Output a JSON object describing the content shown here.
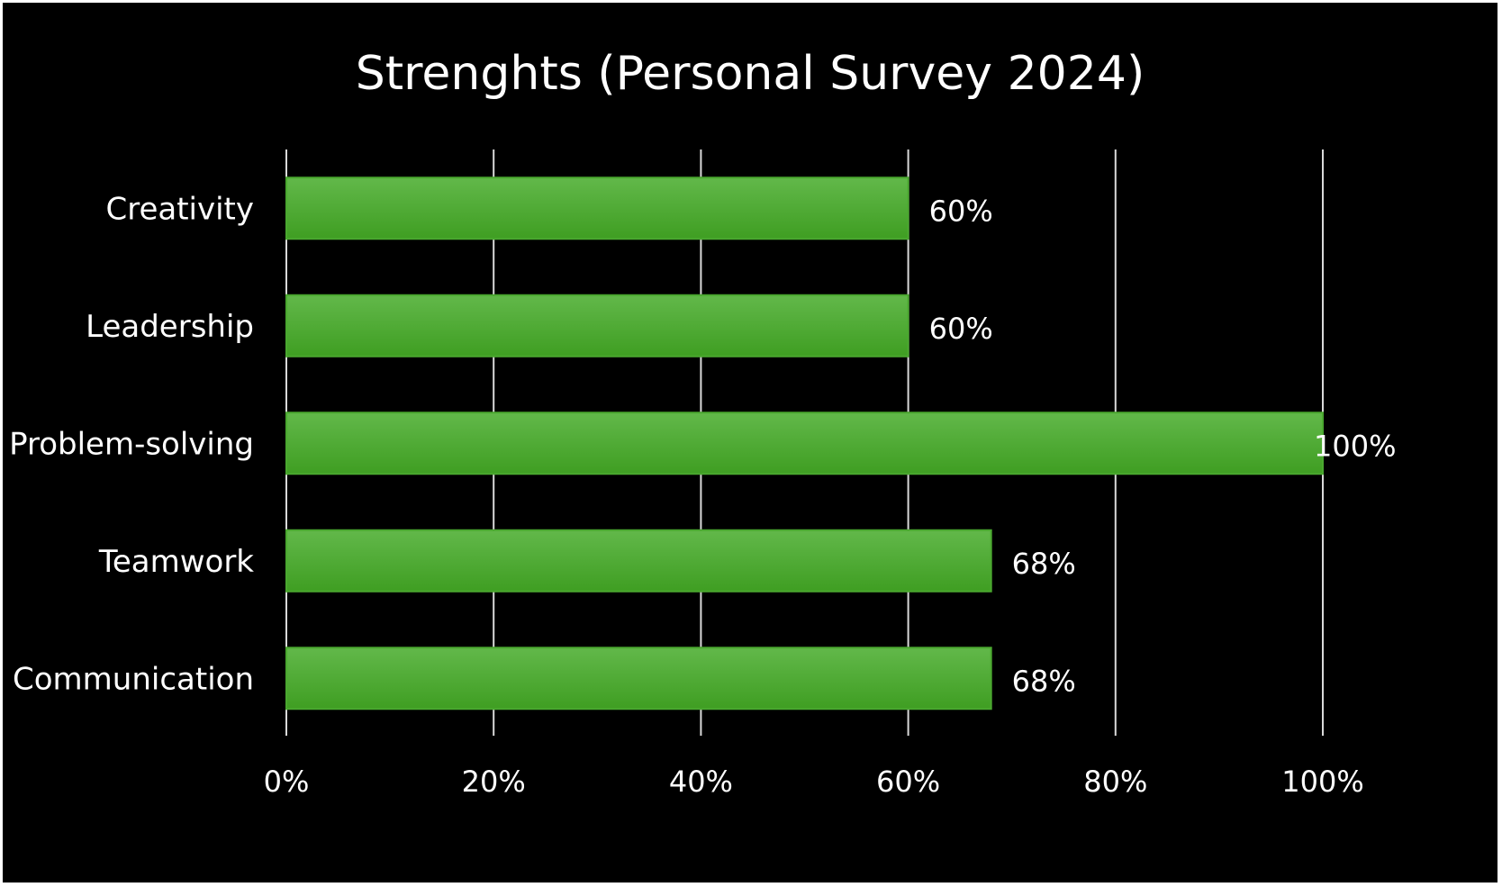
{
  "chart_data": {
    "type": "bar",
    "orientation": "horizontal",
    "title": "Strenghts (Personal Survey 2024)",
    "categories": [
      "Creativity",
      "Leadership",
      "Problem-solving",
      "Teamwork",
      "Communication"
    ],
    "values": [
      60,
      60,
      100,
      68,
      68
    ],
    "value_labels": [
      "60%",
      "60%",
      "100%",
      "68%",
      "68%"
    ],
    "xlim": [
      0,
      100
    ],
    "x_ticks": [
      0,
      20,
      40,
      60,
      80,
      100
    ],
    "x_tick_labels": [
      "0%",
      "20%",
      "40%",
      "60%",
      "80%",
      "100%"
    ],
    "grid": "vertical",
    "legend": "none",
    "colors": {
      "background": "#000000",
      "bar_fill_top": "#62b84a",
      "bar_fill_bottom": "#3f9e22",
      "bar_stroke": "#4aa82f",
      "grid": "#d9d9d9",
      "text": "#ffffff"
    }
  }
}
